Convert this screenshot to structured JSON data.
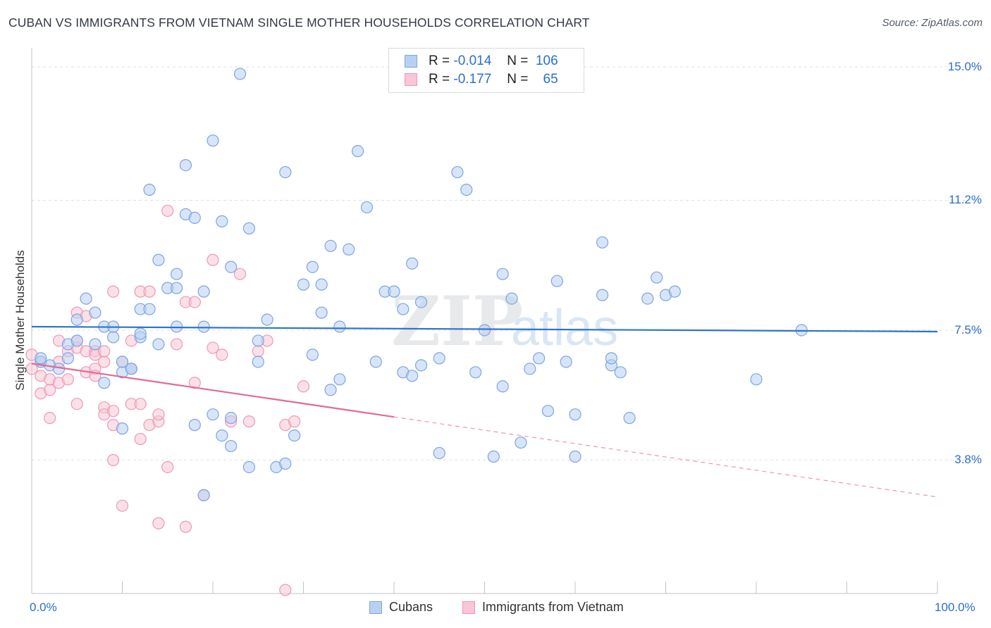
{
  "header": {
    "title": "CUBAN VS IMMIGRANTS FROM VIETNAM SINGLE MOTHER HOUSEHOLDS CORRELATION CHART",
    "source": "Source: ZipAtlas.com"
  },
  "watermark": {
    "part1": "ZIP",
    "part2": "atlas"
  },
  "legend": {
    "rows": [
      {
        "r_label": "R =",
        "r_value": "-0.014",
        "n_label": "N =",
        "n_value": "106"
      },
      {
        "r_label": "R =",
        "r_value": "-0.177",
        "n_label": "N =",
        "n_value": "65"
      }
    ]
  },
  "colors": {
    "blue_fill": "#b8d0f2",
    "blue_stroke": "#7aa6e0",
    "blue_line": "#2f74c9",
    "pink_fill": "#f8c6d6",
    "pink_stroke": "#ee99b4",
    "pink_line": "#e06a95",
    "grid": "#dde1e6",
    "axis_label": "#2c6fc9"
  },
  "chart_data": {
    "type": "scatter",
    "title": "CUBAN VS IMMIGRANTS FROM VIETNAM SINGLE MOTHER HOUSEHOLDS CORRELATION CHART",
    "xlabel": "",
    "ylabel": "Single Mother Households",
    "xlim": [
      0,
      100
    ],
    "ylim": [
      0,
      15.3
    ],
    "x_tick_labels": [
      "0.0%",
      "100.0%"
    ],
    "y_ticks": [
      3.8,
      7.5,
      11.2,
      15.0
    ],
    "y_tick_labels": [
      "3.8%",
      "7.5%",
      "11.2%",
      "15.0%"
    ],
    "grid": true,
    "legend_position": "top-center",
    "series": [
      {
        "name": "Cubans",
        "trend": {
          "x": [
            0,
            100
          ],
          "y": [
            7.6,
            7.46
          ],
          "dashed_from": null
        },
        "points": [
          [
            1,
            6.6
          ],
          [
            1,
            6.7
          ],
          [
            2,
            6.5
          ],
          [
            3,
            6.4
          ],
          [
            4,
            6.7
          ],
          [
            4,
            7.1
          ],
          [
            5,
            7.8
          ],
          [
            5,
            7.2
          ],
          [
            6,
            8.4
          ],
          [
            7,
            8.0
          ],
          [
            7,
            7.1
          ],
          [
            8,
            6.0
          ],
          [
            8,
            7.6
          ],
          [
            9,
            7.3
          ],
          [
            9,
            7.6
          ],
          [
            10,
            6.3
          ],
          [
            10,
            4.7
          ],
          [
            10,
            6.6
          ],
          [
            11,
            6.4
          ],
          [
            11,
            6.4
          ],
          [
            12,
            7.3
          ],
          [
            12,
            7.4
          ],
          [
            12,
            8.1
          ],
          [
            13,
            11.5
          ],
          [
            13,
            8.1
          ],
          [
            14,
            9.5
          ],
          [
            14,
            7.1
          ],
          [
            15,
            8.7
          ],
          [
            16,
            9.1
          ],
          [
            16,
            8.7
          ],
          [
            16,
            7.6
          ],
          [
            17,
            12.2
          ],
          [
            17,
            10.8
          ],
          [
            18,
            4.8
          ],
          [
            18,
            10.7
          ],
          [
            19,
            7.6
          ],
          [
            19,
            8.6
          ],
          [
            19,
            2.8
          ],
          [
            20,
            5.1
          ],
          [
            20,
            12.9
          ],
          [
            21,
            4.5
          ],
          [
            21,
            10.6
          ],
          [
            22,
            4.2
          ],
          [
            22,
            5.0
          ],
          [
            22,
            9.3
          ],
          [
            23,
            14.8
          ],
          [
            24,
            3.6
          ],
          [
            24,
            10.4
          ],
          [
            25,
            6.6
          ],
          [
            25,
            7.2
          ],
          [
            26,
            7.8
          ],
          [
            27,
            3.6
          ],
          [
            28,
            3.7
          ],
          [
            28,
            12.0
          ],
          [
            29,
            4.5
          ],
          [
            30,
            8.8
          ],
          [
            31,
            9.3
          ],
          [
            31,
            6.8
          ],
          [
            32,
            8.0
          ],
          [
            32,
            8.8
          ],
          [
            33,
            5.8
          ],
          [
            33,
            9.9
          ],
          [
            34,
            7.6
          ],
          [
            34,
            6.1
          ],
          [
            35,
            9.8
          ],
          [
            36,
            12.6
          ],
          [
            37,
            11.0
          ],
          [
            38,
            6.6
          ],
          [
            39,
            8.6
          ],
          [
            40,
            8.6
          ],
          [
            41,
            8.1
          ],
          [
            41,
            6.3
          ],
          [
            42,
            6.2
          ],
          [
            42,
            9.4
          ],
          [
            43,
            8.3
          ],
          [
            43,
            6.5
          ],
          [
            45,
            6.7
          ],
          [
            45,
            4.0
          ],
          [
            47,
            12.0
          ],
          [
            48,
            11.5
          ],
          [
            49,
            6.3
          ],
          [
            50,
            7.5
          ],
          [
            51,
            3.9
          ],
          [
            52,
            5.9
          ],
          [
            52,
            9.1
          ],
          [
            53,
            8.4
          ],
          [
            54,
            4.3
          ],
          [
            55,
            6.4
          ],
          [
            56,
            6.7
          ],
          [
            57,
            5.2
          ],
          [
            58,
            8.9
          ],
          [
            59,
            6.6
          ],
          [
            60,
            5.1
          ],
          [
            60,
            3.9
          ],
          [
            63,
            8.5
          ],
          [
            63,
            10.0
          ],
          [
            64,
            6.5
          ],
          [
            64,
            6.7
          ],
          [
            65,
            6.3
          ],
          [
            66,
            5.0
          ],
          [
            68,
            8.4
          ],
          [
            69,
            9.0
          ],
          [
            70,
            8.5
          ],
          [
            71,
            8.6
          ],
          [
            80,
            6.1
          ],
          [
            85,
            7.5
          ]
        ]
      },
      {
        "name": "Immigrants from Vietnam",
        "trend": {
          "x": [
            0,
            100
          ],
          "y": [
            6.55,
            2.75
          ],
          "dashed_from": 40
        },
        "points": [
          [
            0,
            6.8
          ],
          [
            0,
            6.4
          ],
          [
            1,
            5.7
          ],
          [
            1,
            6.6
          ],
          [
            1,
            6.2
          ],
          [
            2,
            5.8
          ],
          [
            2,
            6.1
          ],
          [
            2,
            5.0
          ],
          [
            3,
            7.2
          ],
          [
            3,
            6.0
          ],
          [
            3,
            6.6
          ],
          [
            4,
            6.1
          ],
          [
            4,
            6.9
          ],
          [
            5,
            7.0
          ],
          [
            5,
            7.2
          ],
          [
            5,
            5.4
          ],
          [
            5,
            8.0
          ],
          [
            6,
            6.9
          ],
          [
            6,
            6.3
          ],
          [
            6,
            7.9
          ],
          [
            7,
            6.4
          ],
          [
            7,
            6.2
          ],
          [
            7,
            6.9
          ],
          [
            7,
            6.8
          ],
          [
            8,
            5.3
          ],
          [
            8,
            6.6
          ],
          [
            8,
            6.9
          ],
          [
            8,
            5.1
          ],
          [
            9,
            4.8
          ],
          [
            9,
            8.6
          ],
          [
            9,
            3.8
          ],
          [
            9,
            5.2
          ],
          [
            10,
            2.5
          ],
          [
            10,
            6.6
          ],
          [
            11,
            7.2
          ],
          [
            11,
            6.4
          ],
          [
            11,
            5.4
          ],
          [
            12,
            4.4
          ],
          [
            12,
            8.6
          ],
          [
            12,
            5.4
          ],
          [
            13,
            4.8
          ],
          [
            13,
            8.6
          ],
          [
            14,
            2.0
          ],
          [
            14,
            4.9
          ],
          [
            14,
            5.1
          ],
          [
            15,
            10.9
          ],
          [
            15,
            3.6
          ],
          [
            16,
            7.1
          ],
          [
            17,
            8.3
          ],
          [
            17,
            1.9
          ],
          [
            18,
            8.3
          ],
          [
            18,
            6.0
          ],
          [
            19,
            2.8
          ],
          [
            20,
            9.5
          ],
          [
            20,
            7.0
          ],
          [
            21,
            6.8
          ],
          [
            22,
            4.9
          ],
          [
            23,
            9.1
          ],
          [
            24,
            4.9
          ],
          [
            25,
            6.9
          ],
          [
            26,
            7.2
          ],
          [
            28,
            0.1
          ],
          [
            28,
            4.8
          ],
          [
            29,
            4.9
          ],
          [
            30,
            5.9
          ]
        ]
      }
    ]
  },
  "bottom_legend": {
    "items": [
      "Cubans",
      "Immigrants from Vietnam"
    ]
  }
}
